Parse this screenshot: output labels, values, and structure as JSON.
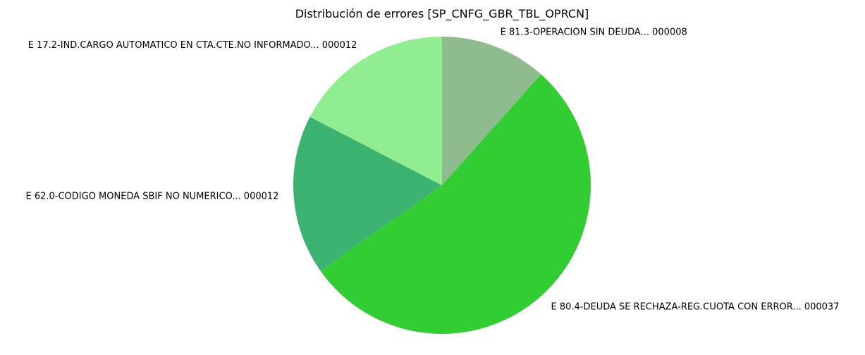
{
  "chart_data": {
    "type": "pie",
    "title": "Distribución de errores [SP_CNFG_GBR_TBL_OPRCN]",
    "slices": [
      {
        "label": "E 81.3-OPERACION SIN DEUDA... 000008",
        "value": 8,
        "color": "#8fbc8f"
      },
      {
        "label": "E 80.4-DEUDA SE RECHAZA-REG.CUOTA CON ERROR... 000037",
        "value": 37,
        "color": "#32cd32"
      },
      {
        "label": "E 62.0-CODIGO MONEDA SBIF NO NUMERICO... 000012",
        "value": 12,
        "color": "#3cb371"
      },
      {
        "label": "E 17.2-IND.CARGO AUTOMATICO EN CTA.CTE.NO INFORMADO... 000012",
        "value": 12,
        "color": "#90ee90"
      }
    ],
    "start_angle": "top",
    "direction": "clockwise"
  }
}
